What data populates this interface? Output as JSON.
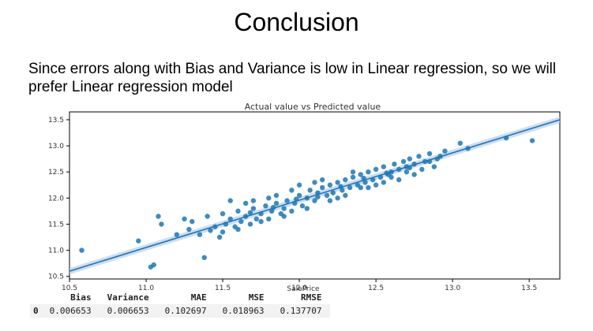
{
  "slide": {
    "title": "Conclusion",
    "body": "Since errors along with Bias and Variance is low in Linear regression, so we will prefer Linear regression model"
  },
  "chart_data": {
    "type": "scatter",
    "title": "Actual value vs Predicted value",
    "xlabel": "SalePrice",
    "ylabel": "",
    "xlim": [
      10.5,
      13.7
    ],
    "ylim": [
      10.45,
      13.65
    ],
    "xticks": [
      "10.5",
      "11.0",
      "11.5",
      "12.0",
      "12.5",
      "13.0",
      "13.5"
    ],
    "yticks": [
      "10.5",
      "11.0",
      "11.5",
      "12.0",
      "12.5",
      "13.0",
      "13.5"
    ],
    "grid": false,
    "regression_line": {
      "x": [
        10.5,
        13.7
      ],
      "y": [
        10.6,
        13.5
      ]
    },
    "points": [
      [
        10.58,
        11.0
      ],
      [
        10.95,
        11.18
      ],
      [
        11.05,
        10.72
      ],
      [
        11.03,
        10.68
      ],
      [
        11.08,
        11.65
      ],
      [
        11.1,
        11.5
      ],
      [
        11.2,
        11.3
      ],
      [
        11.28,
        11.4
      ],
      [
        11.3,
        11.55
      ],
      [
        11.35,
        11.3
      ],
      [
        11.38,
        10.86
      ],
      [
        11.4,
        11.65
      ],
      [
        11.45,
        11.45
      ],
      [
        11.48,
        11.25
      ],
      [
        11.5,
        11.7
      ],
      [
        11.52,
        11.5
      ],
      [
        11.55,
        11.6
      ],
      [
        11.58,
        11.45
      ],
      [
        11.6,
        11.75
      ],
      [
        11.62,
        11.55
      ],
      [
        11.65,
        11.65
      ],
      [
        11.68,
        11.5
      ],
      [
        11.7,
        11.8
      ],
      [
        11.72,
        11.6
      ],
      [
        11.75,
        11.7
      ],
      [
        11.78,
        11.85
      ],
      [
        11.8,
        11.6
      ],
      [
        11.82,
        11.75
      ],
      [
        11.85,
        11.9
      ],
      [
        11.88,
        11.7
      ],
      [
        11.9,
        11.8
      ],
      [
        11.92,
        11.95
      ],
      [
        11.95,
        11.75
      ],
      [
        11.97,
        11.9
      ],
      [
        12.0,
        12.05
      ],
      [
        12.02,
        11.85
      ],
      [
        12.05,
        12.0
      ],
      [
        12.07,
        12.15
      ],
      [
        12.1,
        11.95
      ],
      [
        12.12,
        12.1
      ],
      [
        12.15,
        12.2
      ],
      [
        12.18,
        12.05
      ],
      [
        12.2,
        12.25
      ],
      [
        12.22,
        12.1
      ],
      [
        12.25,
        12.3
      ],
      [
        12.28,
        12.15
      ],
      [
        12.3,
        12.35
      ],
      [
        12.33,
        12.2
      ],
      [
        12.35,
        12.4
      ],
      [
        12.38,
        12.25
      ],
      [
        12.4,
        12.45
      ],
      [
        12.43,
        12.3
      ],
      [
        12.45,
        12.5
      ],
      [
        12.48,
        12.35
      ],
      [
        12.5,
        12.55
      ],
      [
        12.53,
        12.4
      ],
      [
        12.55,
        12.6
      ],
      [
        12.58,
        12.45
      ],
      [
        12.6,
        12.5
      ],
      [
        12.62,
        12.65
      ],
      [
        12.65,
        12.55
      ],
      [
        12.68,
        12.7
      ],
      [
        12.7,
        12.6
      ],
      [
        12.72,
        12.75
      ],
      [
        12.75,
        12.65
      ],
      [
        12.78,
        12.8
      ],
      [
        12.82,
        12.7
      ],
      [
        12.85,
        12.85
      ],
      [
        12.9,
        12.75
      ],
      [
        12.95,
        12.9
      ],
      [
        13.05,
        13.05
      ],
      [
        13.1,
        12.95
      ],
      [
        13.35,
        13.15
      ],
      [
        13.52,
        13.1
      ],
      [
        11.55,
        11.95
      ],
      [
        11.65,
        11.9
      ],
      [
        11.75,
        11.55
      ],
      [
        11.85,
        12.05
      ],
      [
        11.95,
        12.15
      ],
      [
        12.05,
        11.8
      ],
      [
        12.15,
        12.35
      ],
      [
        12.25,
        12.0
      ],
      [
        12.35,
        12.5
      ],
      [
        12.45,
        12.2
      ],
      [
        12.55,
        12.3
      ],
      [
        12.65,
        12.35
      ],
      [
        12.75,
        12.45
      ],
      [
        12.8,
        12.55
      ],
      [
        12.88,
        12.6
      ],
      [
        12.92,
        12.8
      ],
      [
        11.42,
        11.38
      ],
      [
        11.6,
        11.4
      ],
      [
        11.7,
        11.95
      ],
      [
        11.8,
        12.0
      ],
      [
        11.9,
        11.65
      ],
      [
        12.0,
        12.25
      ],
      [
        12.1,
        12.3
      ],
      [
        12.2,
        11.95
      ],
      [
        12.3,
        12.05
      ],
      [
        12.4,
        12.2
      ],
      [
        12.5,
        12.25
      ],
      [
        12.6,
        12.4
      ],
      [
        12.7,
        12.5
      ],
      [
        12.85,
        12.7
      ],
      [
        11.25,
        11.6
      ],
      [
        11.5,
        11.35
      ],
      [
        11.68,
        11.72
      ],
      [
        11.83,
        11.82
      ],
      [
        11.98,
        11.98
      ],
      [
        12.12,
        12.02
      ],
      [
        12.27,
        12.22
      ],
      [
        12.42,
        12.38
      ],
      [
        12.57,
        12.48
      ],
      [
        12.72,
        12.58
      ]
    ]
  },
  "table": {
    "columns": [
      "Bias",
      "Variance",
      "MAE",
      "MSE",
      "RMSE"
    ],
    "rows": [
      {
        "index": "0",
        "values": [
          "0.006653",
          "0.006653",
          "0.102697",
          "0.018963",
          "0.137707"
        ]
      }
    ]
  },
  "colors": {
    "point": "#1f77b4",
    "line": "#1f77b4",
    "band": "#aec7e8"
  }
}
